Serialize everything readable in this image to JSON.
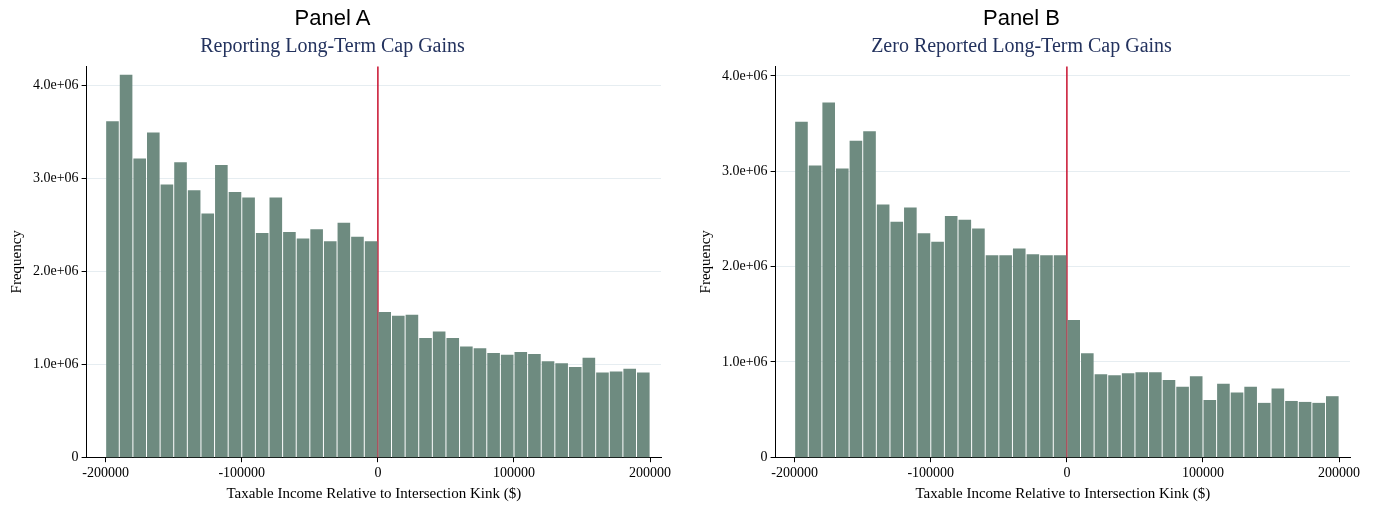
{
  "chart_data": [
    {
      "type": "histogram",
      "title": "Panel A",
      "subtitle": "Reporting Long-Term Cap Gains",
      "xlabel": "Taxable Income Relative to Intersection Kink ($)",
      "ylabel": "Frequency",
      "bins": [
        -200000,
        -190000,
        -180000,
        -170000,
        -160000,
        -150000,
        -140000,
        -130000,
        -120000,
        -110000,
        -100000,
        -90000,
        -80000,
        -70000,
        -60000,
        -50000,
        -40000,
        -30000,
        -20000,
        -10000,
        0,
        10000,
        20000,
        30000,
        40000,
        50000,
        60000,
        70000,
        80000,
        90000,
        100000,
        110000,
        120000,
        130000,
        140000,
        150000,
        160000,
        170000,
        180000,
        190000,
        200000
      ],
      "values": [
        3610000,
        4110000,
        3210000,
        3490000,
        2930000,
        3170000,
        2870000,
        2620000,
        3140000,
        2850000,
        2790000,
        2410000,
        2790000,
        2420000,
        2350000,
        2450000,
        2320000,
        2520000,
        2370000,
        2320000,
        1560000,
        1520000,
        1530000,
        1280000,
        1350000,
        1280000,
        1190000,
        1170000,
        1120000,
        1100000,
        1130000,
        1110000,
        1030000,
        1010000,
        970000,
        1070000,
        910000,
        920000,
        950000,
        910000
      ],
      "color": "#6e8b80",
      "xlim": [
        -214000,
        208000
      ],
      "ylim": [
        0,
        4200000
      ],
      "xticks": [
        -200000,
        -100000,
        0,
        100000,
        200000
      ],
      "yticks": [
        0,
        {
          "value": 1000000,
          "label": "1.0e+06"
        },
        {
          "value": 2000000,
          "label": "2.0e+06"
        },
        {
          "value": 3000000,
          "label": "3.0e+06"
        },
        {
          "value": 4000000,
          "label": "4.0e+06"
        }
      ],
      "ref_lines": [
        {
          "axis": "x",
          "value": 0,
          "color": "#c8102e"
        }
      ],
      "grid": "y"
    },
    {
      "type": "histogram",
      "title": "Panel B",
      "subtitle": "Zero Reported Long-Term Cap Gains",
      "xlabel": "Taxable Income Relative to Intersection Kink ($)",
      "ylabel": "Frequency",
      "bins": [
        -200000,
        -190000,
        -180000,
        -170000,
        -160000,
        -150000,
        -140000,
        -130000,
        -120000,
        -110000,
        -100000,
        -90000,
        -80000,
        -70000,
        -60000,
        -50000,
        -40000,
        -30000,
        -20000,
        -10000,
        0,
        10000,
        20000,
        30000,
        40000,
        50000,
        60000,
        70000,
        80000,
        90000,
        100000,
        110000,
        120000,
        130000,
        140000,
        150000,
        160000,
        170000,
        180000,
        190000,
        200000
      ],
      "values": [
        3520000,
        3060000,
        3720000,
        3030000,
        3320000,
        3420000,
        2650000,
        2470000,
        2620000,
        2350000,
        2260000,
        2530000,
        2490000,
        2400000,
        2120000,
        2120000,
        2190000,
        2130000,
        2120000,
        2120000,
        1440000,
        1090000,
        870000,
        860000,
        880000,
        890000,
        890000,
        810000,
        740000,
        850000,
        600000,
        770000,
        680000,
        740000,
        570000,
        720000,
        590000,
        580000,
        570000,
        640000
      ],
      "color": "#6e8b80",
      "xlim": [
        -214000,
        208000
      ],
      "ylim": [
        0,
        4100000
      ],
      "xticks": [
        -200000,
        -100000,
        0,
        100000,
        200000
      ],
      "yticks": [
        0,
        {
          "value": 1000000,
          "label": "1.0e+06"
        },
        {
          "value": 2000000,
          "label": "2.0e+06"
        },
        {
          "value": 3000000,
          "label": "3.0e+06"
        },
        {
          "value": 4000000,
          "label": "4.0e+06"
        }
      ],
      "ref_lines": [
        {
          "axis": "x",
          "value": 0,
          "color": "#c8102e"
        }
      ],
      "grid": "y"
    }
  ]
}
